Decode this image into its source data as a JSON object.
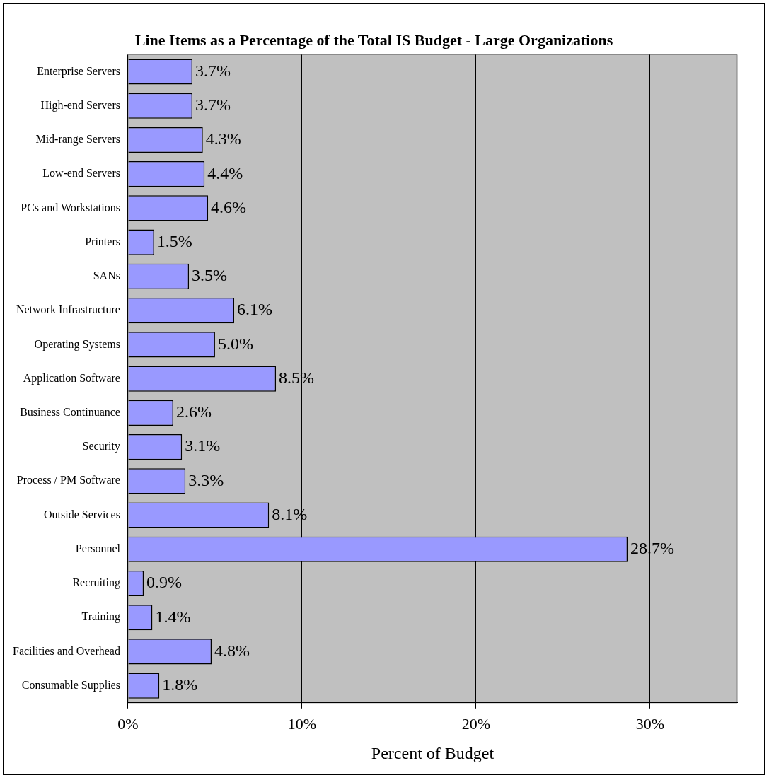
{
  "chart_data": {
    "type": "bar",
    "orientation": "horizontal",
    "title": "Line Items as a Percentage of the Total IS Budget - Large Organizations",
    "xlabel": "Percent of Budget",
    "categories": [
      "Enterprise Servers",
      "High-end Servers",
      "Mid-range Servers",
      "Low-end Servers",
      "PCs and Workstations",
      "Printers",
      "SANs",
      "Network Infrastructure",
      "Operating Systems",
      "Application Software",
      "Business Continuance",
      "Security",
      "Process / PM Software",
      "Outside Services",
      "Personnel",
      "Recruiting",
      "Training",
      "Facilities and Overhead",
      "Consumable Supplies"
    ],
    "values": [
      3.7,
      3.7,
      4.3,
      4.4,
      4.6,
      1.5,
      3.5,
      6.1,
      5.0,
      8.5,
      2.6,
      3.1,
      3.3,
      8.1,
      28.7,
      0.9,
      1.4,
      4.8,
      1.8
    ],
    "value_labels": [
      "3.7%",
      "3.7%",
      "4.3%",
      "4.4%",
      "4.6%",
      "1.5%",
      "3.5%",
      "6.1%",
      "5.0%",
      "8.5%",
      "2.6%",
      "3.1%",
      "3.3%",
      "8.1%",
      "28.7%",
      "0.9%",
      "1.4%",
      "4.8%",
      "1.8%"
    ],
    "color": "#9999ff",
    "xlim": [
      0,
      35
    ],
    "xticks": [
      {
        "value": 0,
        "label": "0%"
      },
      {
        "value": 10,
        "label": "10%"
      },
      {
        "value": 20,
        "label": "20%"
      },
      {
        "value": 30,
        "label": "30%"
      }
    ],
    "grid": "x",
    "legend": false
  }
}
